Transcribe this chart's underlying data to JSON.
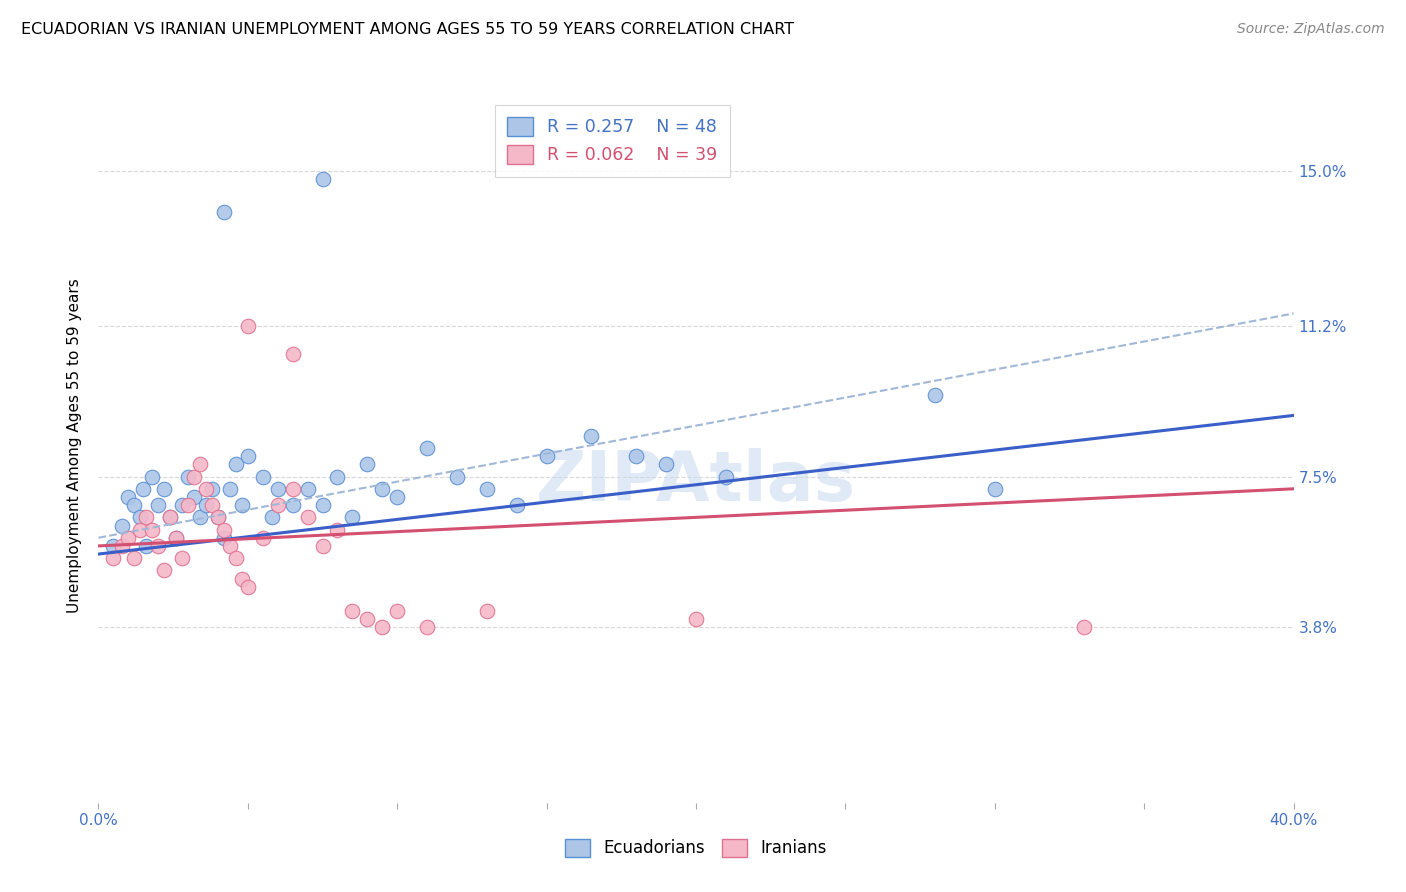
{
  "title": "ECUADORIAN VS IRANIAN UNEMPLOYMENT AMONG AGES 55 TO 59 YEARS CORRELATION CHART",
  "source": "Source: ZipAtlas.com",
  "ylabel": "Unemployment Among Ages 55 to 59 years",
  "xlim": [
    0.0,
    0.4
  ],
  "ylim": [
    -0.005,
    0.17
  ],
  "ytick_positions": [
    0.038,
    0.075,
    0.112,
    0.15
  ],
  "ytick_labels": [
    "3.8%",
    "7.5%",
    "11.2%",
    "15.0%"
  ],
  "grid_yticks": [
    0.038,
    0.075,
    0.112,
    0.15
  ],
  "blue_color": "#adc6e8",
  "pink_color": "#f5b8c8",
  "blue_edge_color": "#5b8fd4",
  "pink_edge_color": "#e07090",
  "blue_line_color": "#3a5fc8",
  "pink_line_color": "#d45070",
  "dashed_line_color": "#a0b8d8",
  "blue_scatter": [
    [
      0.005,
      0.058
    ],
    [
      0.008,
      0.063
    ],
    [
      0.01,
      0.07
    ],
    [
      0.012,
      0.068
    ],
    [
      0.014,
      0.065
    ],
    [
      0.015,
      0.072
    ],
    [
      0.016,
      0.058
    ],
    [
      0.018,
      0.075
    ],
    [
      0.02,
      0.068
    ],
    [
      0.022,
      0.072
    ],
    [
      0.024,
      0.065
    ],
    [
      0.026,
      0.06
    ],
    [
      0.028,
      0.068
    ],
    [
      0.03,
      0.075
    ],
    [
      0.032,
      0.07
    ],
    [
      0.034,
      0.065
    ],
    [
      0.036,
      0.068
    ],
    [
      0.038,
      0.072
    ],
    [
      0.04,
      0.065
    ],
    [
      0.042,
      0.06
    ],
    [
      0.044,
      0.072
    ],
    [
      0.046,
      0.078
    ],
    [
      0.048,
      0.068
    ],
    [
      0.05,
      0.08
    ],
    [
      0.055,
      0.075
    ],
    [
      0.058,
      0.065
    ],
    [
      0.06,
      0.072
    ],
    [
      0.065,
      0.068
    ],
    [
      0.07,
      0.072
    ],
    [
      0.075,
      0.068
    ],
    [
      0.08,
      0.075
    ],
    [
      0.085,
      0.065
    ],
    [
      0.09,
      0.078
    ],
    [
      0.095,
      0.072
    ],
    [
      0.1,
      0.07
    ],
    [
      0.11,
      0.082
    ],
    [
      0.12,
      0.075
    ],
    [
      0.13,
      0.072
    ],
    [
      0.14,
      0.068
    ],
    [
      0.15,
      0.08
    ],
    [
      0.165,
      0.085
    ],
    [
      0.18,
      0.08
    ],
    [
      0.19,
      0.078
    ],
    [
      0.21,
      0.075
    ],
    [
      0.042,
      0.14
    ],
    [
      0.075,
      0.148
    ],
    [
      0.28,
      0.095
    ],
    [
      0.3,
      0.072
    ]
  ],
  "pink_scatter": [
    [
      0.005,
      0.055
    ],
    [
      0.008,
      0.058
    ],
    [
      0.01,
      0.06
    ],
    [
      0.012,
      0.055
    ],
    [
      0.014,
      0.062
    ],
    [
      0.016,
      0.065
    ],
    [
      0.018,
      0.062
    ],
    [
      0.02,
      0.058
    ],
    [
      0.022,
      0.052
    ],
    [
      0.024,
      0.065
    ],
    [
      0.026,
      0.06
    ],
    [
      0.028,
      0.055
    ],
    [
      0.03,
      0.068
    ],
    [
      0.032,
      0.075
    ],
    [
      0.034,
      0.078
    ],
    [
      0.036,
      0.072
    ],
    [
      0.038,
      0.068
    ],
    [
      0.04,
      0.065
    ],
    [
      0.042,
      0.062
    ],
    [
      0.044,
      0.058
    ],
    [
      0.046,
      0.055
    ],
    [
      0.048,
      0.05
    ],
    [
      0.05,
      0.048
    ],
    [
      0.055,
      0.06
    ],
    [
      0.06,
      0.068
    ],
    [
      0.065,
      0.072
    ],
    [
      0.07,
      0.065
    ],
    [
      0.075,
      0.058
    ],
    [
      0.08,
      0.062
    ],
    [
      0.085,
      0.042
    ],
    [
      0.09,
      0.04
    ],
    [
      0.095,
      0.038
    ],
    [
      0.1,
      0.042
    ],
    [
      0.11,
      0.038
    ],
    [
      0.13,
      0.042
    ],
    [
      0.2,
      0.04
    ],
    [
      0.33,
      0.038
    ],
    [
      0.05,
      0.112
    ],
    [
      0.065,
      0.105
    ]
  ],
  "blue_line_x": [
    0.0,
    0.4
  ],
  "blue_line_y": [
    0.056,
    0.09
  ],
  "pink_line_x": [
    0.0,
    0.4
  ],
  "pink_line_y": [
    0.058,
    0.072
  ],
  "dashed_line_x": [
    0.0,
    0.4
  ],
  "dashed_line_y": [
    0.06,
    0.115
  ],
  "background_color": "#ffffff",
  "grid_color": "#d8d8d8"
}
